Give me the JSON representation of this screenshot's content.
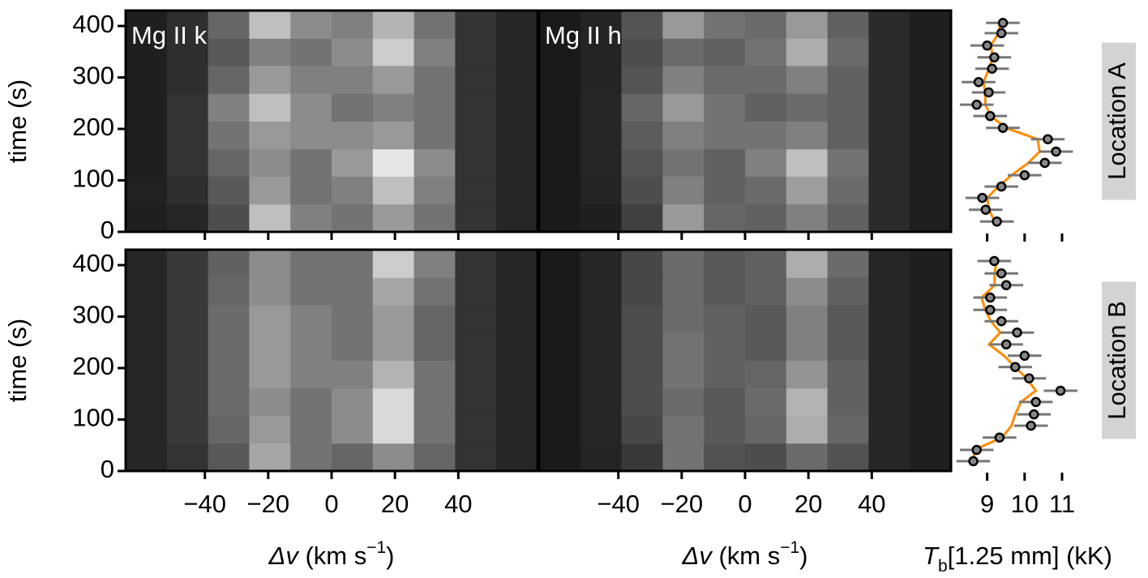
{
  "chart_data": [
    {
      "type": "heatmap",
      "title": "Mg II k",
      "xlim": [
        -65,
        65
      ],
      "ylim": [
        0,
        430
      ],
      "xticks": [
        -40,
        -20,
        0,
        20,
        40
      ],
      "yticks": [
        0,
        100,
        200,
        300,
        400
      ],
      "ylabel": "time (s)",
      "xbins": [
        -65,
        -52,
        -39,
        -26,
        -13,
        0,
        13,
        26,
        39,
        52,
        65
      ],
      "ybins": [
        0,
        54,
        108,
        161,
        215,
        269,
        323,
        376,
        430
      ],
      "z": [
        [
          0.12,
          0.15,
          0.3,
          0.75,
          0.5,
          0.45,
          0.6,
          0.45,
          0.2,
          0.15
        ],
        [
          0.13,
          0.18,
          0.35,
          0.6,
          0.45,
          0.5,
          0.75,
          0.5,
          0.2,
          0.15
        ],
        [
          0.12,
          0.2,
          0.4,
          0.55,
          0.45,
          0.6,
          0.9,
          0.55,
          0.2,
          0.15
        ],
        [
          0.12,
          0.2,
          0.45,
          0.6,
          0.55,
          0.55,
          0.6,
          0.45,
          0.2,
          0.15
        ],
        [
          0.12,
          0.2,
          0.5,
          0.75,
          0.55,
          0.45,
          0.5,
          0.45,
          0.2,
          0.15
        ],
        [
          0.12,
          0.18,
          0.4,
          0.6,
          0.5,
          0.5,
          0.6,
          0.45,
          0.2,
          0.15
        ],
        [
          0.12,
          0.18,
          0.35,
          0.5,
          0.45,
          0.55,
          0.8,
          0.5,
          0.2,
          0.15
        ],
        [
          0.12,
          0.18,
          0.4,
          0.75,
          0.55,
          0.5,
          0.7,
          0.45,
          0.2,
          0.15
        ]
      ]
    },
    {
      "type": "heatmap",
      "title": "Mg II h",
      "xlim": [
        -65,
        65
      ],
      "ylim": [
        0,
        430
      ],
      "xticks": [
        -40,
        -20,
        0,
        20,
        40
      ],
      "xbins": [
        -65,
        -52,
        -39,
        -26,
        -13,
        0,
        13,
        26,
        39,
        52,
        65
      ],
      "ybins": [
        0,
        54,
        108,
        161,
        215,
        269,
        323,
        376,
        430
      ],
      "z": [
        [
          0.1,
          0.12,
          0.25,
          0.6,
          0.4,
          0.38,
          0.5,
          0.38,
          0.17,
          0.12
        ],
        [
          0.1,
          0.14,
          0.3,
          0.5,
          0.38,
          0.42,
          0.62,
          0.42,
          0.17,
          0.12
        ],
        [
          0.1,
          0.15,
          0.33,
          0.45,
          0.38,
          0.5,
          0.75,
          0.45,
          0.17,
          0.12
        ],
        [
          0.1,
          0.15,
          0.36,
          0.5,
          0.45,
          0.45,
          0.5,
          0.38,
          0.17,
          0.12
        ],
        [
          0.1,
          0.15,
          0.4,
          0.6,
          0.45,
          0.38,
          0.42,
          0.38,
          0.17,
          0.12
        ],
        [
          0.1,
          0.14,
          0.33,
          0.5,
          0.42,
          0.42,
          0.5,
          0.38,
          0.17,
          0.12
        ],
        [
          0.1,
          0.14,
          0.3,
          0.42,
          0.38,
          0.45,
          0.68,
          0.42,
          0.17,
          0.12
        ],
        [
          0.1,
          0.14,
          0.33,
          0.6,
          0.45,
          0.42,
          0.6,
          0.38,
          0.17,
          0.12
        ]
      ]
    },
    {
      "type": "heatmap",
      "xlim": [
        -65,
        65
      ],
      "ylim": [
        0,
        430
      ],
      "xticks": [
        -40,
        -20,
        0,
        20,
        40
      ],
      "yticks": [
        0,
        100,
        200,
        300,
        400
      ],
      "ylabel": "time (s)",
      "xlabel": [
        "Δv",
        " (km s",
        "−1",
        ")"
      ],
      "xbins": [
        -65,
        -52,
        -39,
        -26,
        -13,
        0,
        13,
        26,
        39,
        52,
        65
      ],
      "ybins": [
        0,
        54,
        108,
        161,
        215,
        269,
        323,
        376,
        430
      ],
      "z": [
        [
          0.15,
          0.2,
          0.35,
          0.65,
          0.45,
          0.4,
          0.55,
          0.4,
          0.2,
          0.15
        ],
        [
          0.15,
          0.22,
          0.4,
          0.6,
          0.45,
          0.55,
          0.85,
          0.45,
          0.2,
          0.15
        ],
        [
          0.15,
          0.22,
          0.42,
          0.55,
          0.45,
          0.55,
          0.85,
          0.45,
          0.2,
          0.15
        ],
        [
          0.15,
          0.22,
          0.42,
          0.6,
          0.5,
          0.5,
          0.7,
          0.45,
          0.2,
          0.15
        ],
        [
          0.15,
          0.22,
          0.42,
          0.6,
          0.5,
          0.45,
          0.6,
          0.4,
          0.2,
          0.15
        ],
        [
          0.15,
          0.22,
          0.42,
          0.6,
          0.5,
          0.45,
          0.6,
          0.4,
          0.2,
          0.15
        ],
        [
          0.15,
          0.22,
          0.4,
          0.55,
          0.45,
          0.45,
          0.65,
          0.45,
          0.2,
          0.15
        ],
        [
          0.15,
          0.22,
          0.38,
          0.55,
          0.45,
          0.45,
          0.8,
          0.5,
          0.2,
          0.15
        ]
      ]
    },
    {
      "type": "heatmap",
      "xlim": [
        -65,
        65
      ],
      "ylim": [
        0,
        430
      ],
      "xticks": [
        -40,
        -20,
        0,
        20,
        40
      ],
      "xlabel": [
        "Δv",
        " (km s",
        "−1",
        ")"
      ],
      "xbins": [
        -65,
        -52,
        -39,
        -26,
        -13,
        0,
        13,
        26,
        39,
        52,
        65
      ],
      "ybins": [
        0,
        54,
        108,
        161,
        215,
        269,
        323,
        376,
        430
      ],
      "z": [
        [
          0.1,
          0.14,
          0.22,
          0.45,
          0.32,
          0.3,
          0.42,
          0.32,
          0.15,
          0.12
        ],
        [
          0.1,
          0.15,
          0.28,
          0.45,
          0.35,
          0.4,
          0.68,
          0.4,
          0.15,
          0.12
        ],
        [
          0.1,
          0.15,
          0.3,
          0.42,
          0.35,
          0.42,
          0.7,
          0.38,
          0.15,
          0.12
        ],
        [
          0.1,
          0.15,
          0.3,
          0.45,
          0.38,
          0.4,
          0.58,
          0.38,
          0.15,
          0.12
        ],
        [
          0.1,
          0.15,
          0.3,
          0.45,
          0.38,
          0.35,
          0.5,
          0.35,
          0.15,
          0.12
        ],
        [
          0.1,
          0.15,
          0.3,
          0.42,
          0.38,
          0.35,
          0.5,
          0.35,
          0.15,
          0.12
        ],
        [
          0.1,
          0.15,
          0.28,
          0.42,
          0.35,
          0.38,
          0.55,
          0.38,
          0.15,
          0.12
        ],
        [
          0.1,
          0.15,
          0.28,
          0.42,
          0.35,
          0.38,
          0.68,
          0.42,
          0.15,
          0.12
        ]
      ]
    },
    {
      "type": "scatter",
      "label": "Location A",
      "xlim": [
        8.25,
        11.65
      ],
      "ylim": [
        0,
        430
      ],
      "xticks": [
        9,
        10,
        11
      ],
      "y": [
        406,
        386,
        362,
        339,
        317,
        291,
        271,
        247,
        225,
        202,
        180,
        156,
        134,
        110,
        88,
        66,
        43,
        20
      ],
      "series": [
        {
          "kind": "line",
          "color": "#ff8c00",
          "values": [
            9.35,
            9.3,
            9.1,
            9.15,
            9.05,
            8.9,
            8.95,
            8.95,
            9.1,
            9.5,
            10.35,
            10.4,
            10.1,
            9.65,
            9.3,
            9.0,
            9.05,
            9.2
          ]
        },
        {
          "kind": "points",
          "color": "#888888",
          "xerr": 0.45,
          "values": [
            9.42,
            9.38,
            9.0,
            9.19,
            9.13,
            8.77,
            9.04,
            8.72,
            9.08,
            9.42,
            10.62,
            10.84,
            10.54,
            10.0,
            9.38,
            8.87,
            8.96,
            9.26
          ]
        }
      ]
    },
    {
      "type": "scatter",
      "label": "Location B",
      "xlim": [
        8.25,
        11.65
      ],
      "ylim": [
        0,
        430
      ],
      "xticks": [
        9,
        10,
        11
      ],
      "xlabel": [
        "T",
        "b",
        "[1.25 mm] (kK)"
      ],
      "y": [
        408,
        384,
        361,
        337,
        313,
        291,
        269,
        246,
        224,
        202,
        180,
        156,
        134,
        110,
        88,
        65,
        41,
        19
      ],
      "series": [
        {
          "kind": "line",
          "color": "#ff8c00",
          "values": [
            9.25,
            9.2,
            9.2,
            8.85,
            8.95,
            9.1,
            9.35,
            9.05,
            9.45,
            9.75,
            10.05,
            10.3,
            9.9,
            9.75,
            9.65,
            9.4,
            8.65,
            8.65
          ]
        },
        {
          "kind": "points",
          "color": "#888888",
          "xerr": 0.45,
          "values": [
            9.19,
            9.38,
            9.51,
            9.08,
            9.08,
            9.38,
            9.8,
            9.51,
            10.0,
            9.75,
            10.12,
            10.96,
            10.3,
            10.25,
            10.17,
            9.33,
            8.72,
            8.63
          ]
        }
      ]
    }
  ]
}
